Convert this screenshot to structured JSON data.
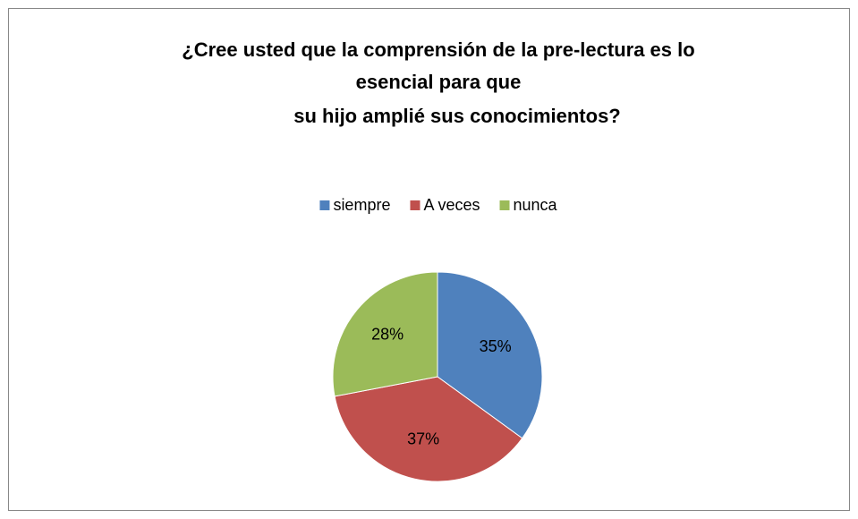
{
  "chart_data": {
    "type": "pie",
    "title": [
      "¿Cree usted que la comprensión de la pre-lectura es lo",
      "esencial para que",
      "su hijo amplié sus conocimientos?"
    ],
    "categories": [
      "siempre",
      "A veces",
      "nunca"
    ],
    "values": [
      35,
      37,
      28
    ],
    "value_labels": [
      "35%",
      "37%",
      "28%"
    ],
    "colors": [
      "#4f81bd",
      "#c0504d",
      "#9bbb59"
    ],
    "legend": "top"
  }
}
